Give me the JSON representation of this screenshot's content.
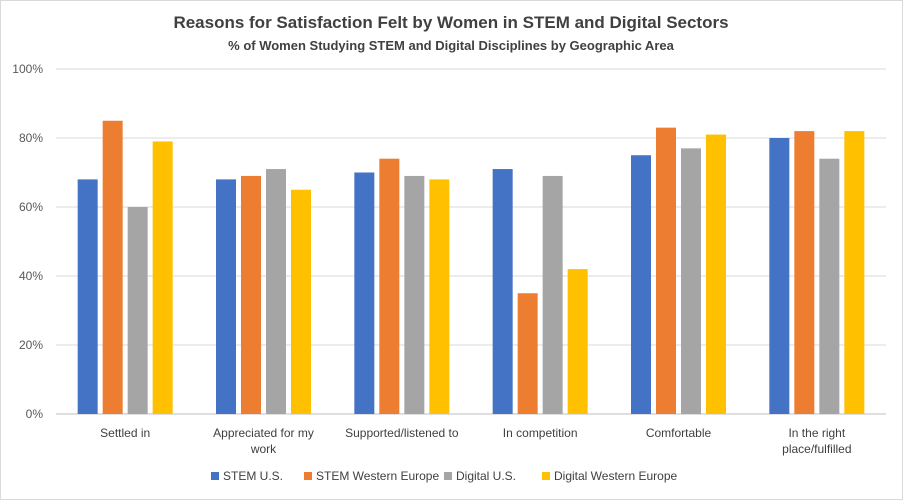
{
  "chart_data": {
    "type": "bar",
    "title": "Reasons for Satisfaction Felt by Women in STEM and Digital Sectors",
    "subtitle": "% of Women Studying STEM and Digital Disciplines by Geographic Area",
    "categories": [
      [
        "Settled in"
      ],
      [
        "Appreciated for my",
        "work"
      ],
      [
        "Supported/listened to"
      ],
      [
        "In competition"
      ],
      [
        "Comfortable"
      ],
      [
        "In the right",
        "place/fulfilled"
      ]
    ],
    "series": [
      {
        "name": "STEM U.S.",
        "color": "#4472c4",
        "values": [
          68,
          68,
          70,
          71,
          75,
          80
        ]
      },
      {
        "name": "STEM Western Europe",
        "color": "#ed7d31",
        "values": [
          85,
          69,
          74,
          35,
          83,
          82
        ]
      },
      {
        "name": "Digital U.S.",
        "color": "#a5a5a5",
        "values": [
          60,
          71,
          69,
          69,
          77,
          74
        ]
      },
      {
        "name": "Digital Western Europe",
        "color": "#ffc000",
        "values": [
          79,
          65,
          68,
          42,
          81,
          82
        ]
      }
    ],
    "ylim": [
      0,
      100
    ],
    "yticks": [
      "0%",
      "20%",
      "40%",
      "60%",
      "80%",
      "100%"
    ],
    "ytick_values": [
      0,
      20,
      40,
      60,
      80,
      100
    ],
    "grid": true,
    "legend_position": "bottom"
  }
}
